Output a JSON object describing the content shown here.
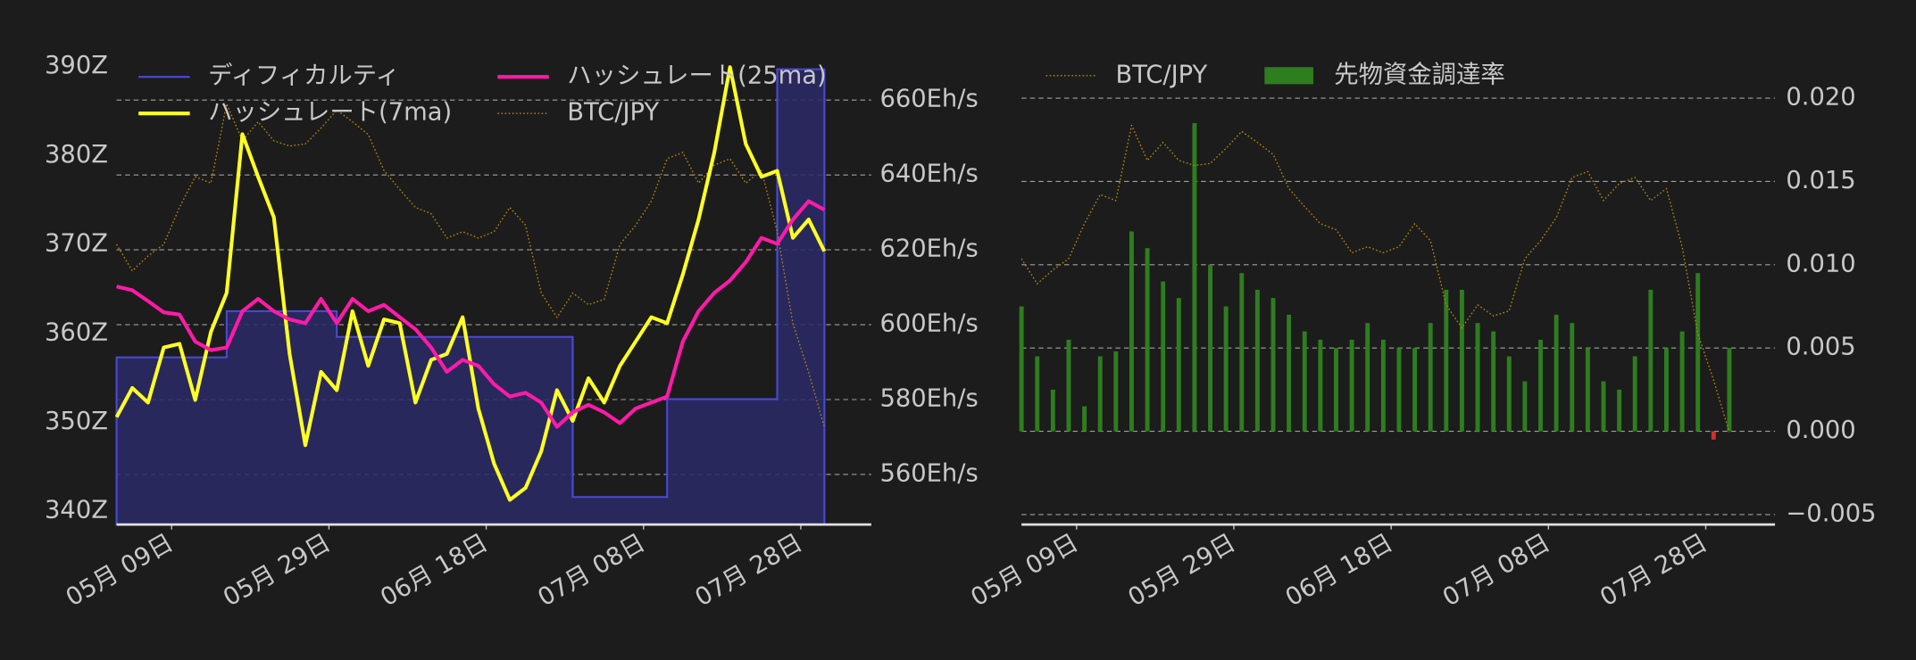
{
  "chart_data": [
    {
      "type": "line",
      "x": [
        "05-02",
        "05-04",
        "05-06",
        "05-08",
        "05-10",
        "05-12",
        "05-14",
        "05-16",
        "05-18",
        "05-20",
        "05-22",
        "05-24",
        "05-26",
        "05-28",
        "05-30",
        "06-01",
        "06-03",
        "06-05",
        "06-07",
        "06-09",
        "06-11",
        "06-13",
        "06-15",
        "06-17",
        "06-19",
        "06-21",
        "06-23",
        "06-25",
        "06-27",
        "06-29",
        "07-01",
        "07-03",
        "07-05",
        "07-07",
        "07-09",
        "07-11",
        "07-13",
        "07-15",
        "07-17",
        "07-19",
        "07-21",
        "07-23",
        "07-25",
        "07-27",
        "07-29",
        "07-31"
      ],
      "xlim": [
        "05-02",
        "07-31"
      ],
      "xticks": [
        {
          "value": "05-09",
          "label": "05月 09日"
        },
        {
          "value": "05-29",
          "label": "05月 29日"
        },
        {
          "value": "06-18",
          "label": "06月 18日"
        },
        {
          "value": "07-08",
          "label": "07月 08日"
        },
        {
          "value": "07-28",
          "label": "07月 28日"
        }
      ],
      "ylim": [
        338.5,
        392
      ],
      "yticks": [
        {
          "value": 340,
          "label": "340Z"
        },
        {
          "value": 350,
          "label": "350Z"
        },
        {
          "value": 360,
          "label": "360Z"
        },
        {
          "value": 370,
          "label": "370Z"
        },
        {
          "value": 380,
          "label": "380Z"
        },
        {
          "value": 390,
          "label": "390Z"
        }
      ],
      "y2lim": [
        546.6,
        673.7
      ],
      "y2ticks": [
        {
          "value": 560,
          "label": "560Eh/s"
        },
        {
          "value": 580,
          "label": "580Eh/s"
        },
        {
          "value": 600,
          "label": "600Eh/s"
        },
        {
          "value": 620,
          "label": "620Eh/s"
        },
        {
          "value": 640,
          "label": "640Eh/s"
        },
        {
          "value": 660,
          "label": "660Eh/s"
        }
      ],
      "y3lim": [
        7000000,
        11500000
      ],
      "grid": "y2",
      "legend": "upper left",
      "series": [
        {
          "name": "ディフィカルティ",
          "kind": "step-area",
          "axis": "y",
          "color": "#4a4ad8",
          "fill": "#2a2a68",
          "values": [
            357.3,
            357.3,
            357.3,
            357.3,
            357.3,
            357.3,
            357.3,
            362.5,
            362.5,
            362.5,
            362.5,
            362.5,
            362.5,
            362.5,
            359.6,
            359.6,
            359.6,
            359.6,
            359.6,
            359.6,
            359.6,
            359.6,
            359.6,
            359.6,
            359.6,
            359.6,
            359.6,
            359.6,
            359.6,
            341.6,
            341.6,
            341.6,
            341.6,
            341.6,
            341.6,
            352.6,
            352.6,
            352.6,
            352.6,
            352.6,
            352.6,
            352.6,
            389.7,
            389.7,
            389.7,
            389.7
          ]
        },
        {
          "name": "ハッシュレート(7ma)",
          "kind": "line",
          "axis": "y2",
          "color": "#ffff22",
          "values": [
            575.3,
            583.1,
            579.2,
            593.9,
            594.9,
            579.9,
            598.1,
            608.5,
            650.9,
            639.5,
            628.7,
            592.2,
            567.8,
            587.4,
            582.5,
            603.6,
            589.0,
            601.4,
            600.4,
            579.2,
            590.6,
            592.2,
            602.0,
            577.6,
            562.9,
            553.2,
            556.4,
            566.2,
            582.5,
            574.3,
            585.7,
            579.2,
            589.0,
            595.5,
            602.0,
            600.4,
            613.4,
            628.1,
            646.0,
            668.8,
            648.3,
            639.5,
            641.1,
            623.2,
            628.1,
            619.6
          ]
        },
        {
          "name": "ハッシュレート(25ma)",
          "kind": "line",
          "axis": "y2",
          "color": "#ff1aa8",
          "values": [
            610.2,
            609.2,
            606.3,
            603.3,
            602.7,
            595.5,
            593.2,
            593.9,
            603.6,
            606.9,
            603.6,
            601.4,
            600.4,
            606.9,
            600.4,
            606.9,
            603.6,
            605.3,
            602.0,
            598.8,
            593.9,
            587.4,
            590.6,
            589.0,
            584.1,
            580.8,
            581.8,
            579.2,
            572.7,
            576.6,
            578.6,
            576.6,
            573.7,
            577.6,
            579.2,
            580.8,
            595.5,
            603.6,
            608.5,
            611.8,
            616.7,
            623.2,
            621.6,
            628.1,
            633.0,
            630.7
          ]
        },
        {
          "name": "BTC/JPY",
          "kind": "line",
          "linestyle": "dotted",
          "axis": "y3",
          "color": "#b8860b",
          "values": [
            9650000,
            9400000,
            9540000,
            9650000,
            10000000,
            10290000,
            10230000,
            10980000,
            10630000,
            10810000,
            10630000,
            10580000,
            10600000,
            10750000,
            10920000,
            10810000,
            10690000,
            10350000,
            10170000,
            10000000,
            9940000,
            9710000,
            9770000,
            9710000,
            9770000,
            10000000,
            9830000,
            9190000,
            8960000,
            9190000,
            9080000,
            9130000,
            9650000,
            9830000,
            10060000,
            10460000,
            10520000,
            10230000,
            10400000,
            10460000,
            10230000,
            10350000,
            9770000,
            8900000,
            8440000,
            7920000
          ]
        }
      ]
    },
    {
      "type": "bar",
      "x": [
        "05-02",
        "05-04",
        "05-06",
        "05-08",
        "05-10",
        "05-12",
        "05-14",
        "05-16",
        "05-18",
        "05-20",
        "05-22",
        "05-24",
        "05-26",
        "05-28",
        "05-30",
        "06-01",
        "06-03",
        "06-05",
        "06-07",
        "06-09",
        "06-11",
        "06-13",
        "06-15",
        "06-17",
        "06-19",
        "06-21",
        "06-23",
        "06-25",
        "06-27",
        "06-29",
        "07-01",
        "07-03",
        "07-05",
        "07-07",
        "07-09",
        "07-11",
        "07-13",
        "07-15",
        "07-17",
        "07-19",
        "07-21",
        "07-23",
        "07-25",
        "07-27",
        "07-29",
        "07-31"
      ],
      "xlim": [
        "05-02",
        "07-31"
      ],
      "xticks": [
        {
          "value": "05-09",
          "label": "05月 09日"
        },
        {
          "value": "05-29",
          "label": "05月 29日"
        },
        {
          "value": "06-18",
          "label": "06月 18日"
        },
        {
          "value": "07-08",
          "label": "07月 08日"
        },
        {
          "value": "07-28",
          "label": "07月 28日"
        }
      ],
      "ylim": [
        -0.0056,
        0.0215
      ],
      "yticks": [
        {
          "value": -0.005,
          "label": "−0.005"
        },
        {
          "value": 0,
          "label": "0.000"
        },
        {
          "value": 0.005,
          "label": "0.005"
        },
        {
          "value": 0.01,
          "label": "0.010"
        },
        {
          "value": 0.015,
          "label": "0.015"
        },
        {
          "value": 0.02,
          "label": "0.020"
        }
      ],
      "y3lim": [
        7000000,
        11500000
      ],
      "grid": "y",
      "legend": "upper left",
      "series": [
        {
          "name": "BTC/JPY",
          "kind": "line",
          "linestyle": "dotted",
          "axis": "y3",
          "color": "#b8860b",
          "values": [
            9650000,
            9400000,
            9540000,
            9650000,
            10000000,
            10290000,
            10230000,
            10980000,
            10630000,
            10810000,
            10630000,
            10580000,
            10600000,
            10750000,
            10920000,
            10810000,
            10690000,
            10350000,
            10170000,
            10000000,
            9940000,
            9710000,
            9770000,
            9710000,
            9770000,
            10000000,
            9830000,
            9190000,
            8960000,
            9190000,
            9080000,
            9130000,
            9650000,
            9830000,
            10060000,
            10460000,
            10520000,
            10230000,
            10400000,
            10460000,
            10230000,
            10350000,
            9770000,
            8900000,
            8440000,
            7920000
          ]
        },
        {
          "name": "先物資金調達率",
          "kind": "bar",
          "axis": "y",
          "color": "#2e7d1e",
          "negative_color": "#d03030",
          "values": [
            0.0075,
            0.0045,
            0.0025,
            0.0055,
            0.0015,
            0.0045,
            0.0048,
            0.012,
            0.011,
            0.009,
            0.008,
            0.0185,
            0.01,
            0.0075,
            0.0095,
            0.0085,
            0.008,
            0.007,
            0.006,
            0.0055,
            0.005,
            0.0055,
            0.0065,
            0.0055,
            0.005,
            0.005,
            0.0065,
            0.0085,
            0.0085,
            0.0065,
            0.006,
            0.0045,
            0.003,
            0.0055,
            0.007,
            0.0065,
            0.005,
            0.003,
            0.0025,
            0.0045,
            0.0085,
            0.005,
            0.006,
            0.0095,
            -0.0005,
            0.005
          ]
        }
      ]
    }
  ]
}
